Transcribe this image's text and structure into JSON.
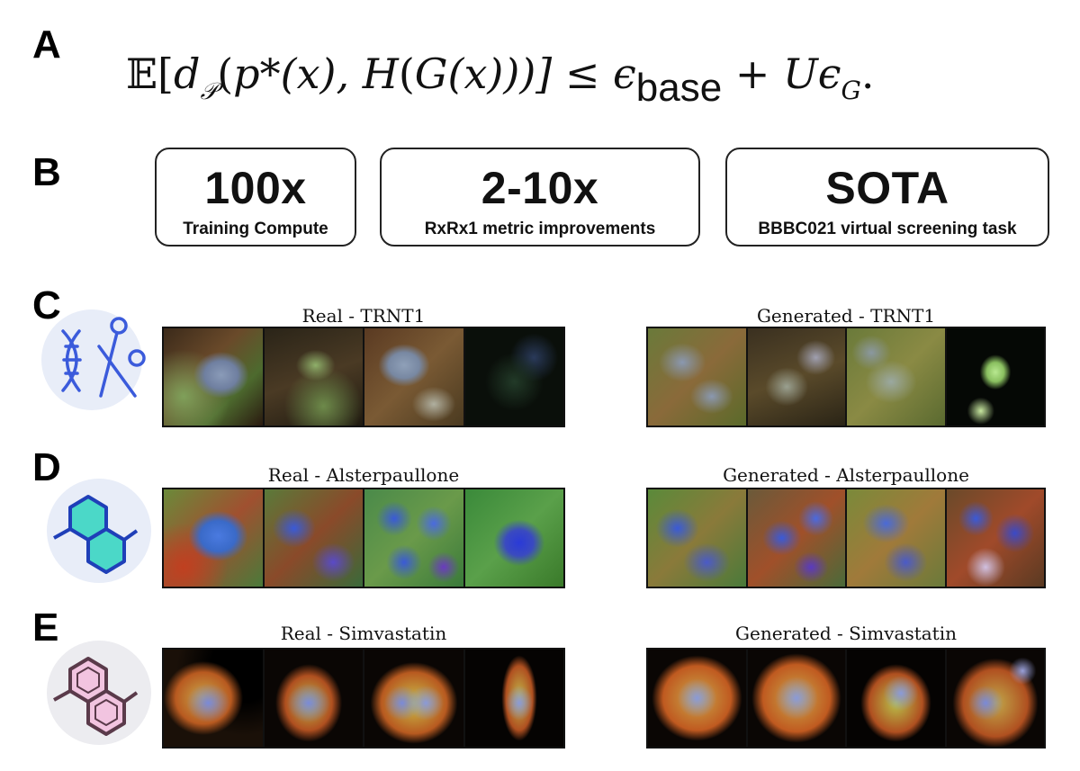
{
  "panels": {
    "a": "A",
    "b": "B",
    "c": "C",
    "d": "D",
    "e": "E"
  },
  "equation": {
    "E": "𝔼[",
    "d": "d",
    "p_sub": "𝒫",
    "mid": "(",
    "pstar": "p*",
    "x1": "(x), ",
    "H": "H",
    "paren1": "(",
    "G": "G",
    "x2": "(x)))] ≤ ",
    "eps": "ϵ",
    "base": "base",
    "plus": " + ",
    "U": "Uϵ",
    "G_sub": "G",
    "end": "."
  },
  "stats": [
    {
      "value": "100x",
      "caption": "Training Compute"
    },
    {
      "value": "2-10x",
      "caption": "RxRx1 metric improvements"
    },
    {
      "value": "SOTA",
      "caption": "BBBC021 virtual screening task"
    }
  ],
  "rows": [
    {
      "real_title": "Real - TRNT1",
      "gen_title": "Generated - TRNT1",
      "icon": "crispr-scissors-icon"
    },
    {
      "real_title": "Real - Alsterpaullone",
      "gen_title": "Generated - Alsterpaullone",
      "icon": "molecule-blue-icon"
    },
    {
      "real_title": "Real - Simvastatin",
      "gen_title": "Generated - Simvastatin",
      "icon": "molecule-pink-icon"
    }
  ],
  "colors": {
    "icon_blue": "#3b5bdb",
    "icon_teal": "#2fd3c0",
    "icon_pink_stroke": "#5a3a4a",
    "icon_pink_fill": "#f2c4e0"
  }
}
